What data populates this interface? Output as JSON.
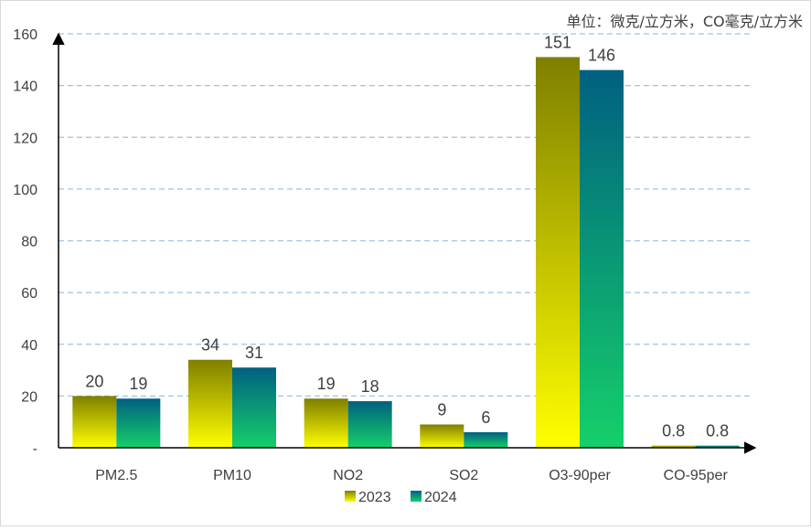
{
  "unit_note": "单位：微克/立方米，CO毫克/立方米",
  "colors": {
    "series_2023_top": "#7f7f00",
    "series_2023_bottom": "#ffff00",
    "series_2024_top": "#006080",
    "series_2024_bottom": "#15d06a",
    "grid": "#9dc3e6",
    "axis": "#000000",
    "label_text": "#404040"
  },
  "chart_data": {
    "type": "bar",
    "title": "",
    "xlabel": "",
    "ylabel": "",
    "categories": [
      "PM2.5",
      "PM10",
      "NO2",
      "SO2",
      "O3-90per",
      "CO-95per"
    ],
    "series": [
      {
        "name": "2023",
        "values": [
          20,
          34,
          19,
          9,
          151,
          0.8
        ],
        "labels": [
          "20",
          "34",
          "19",
          "9",
          "151",
          "0.8"
        ]
      },
      {
        "name": "2024",
        "values": [
          19,
          31,
          18,
          6,
          146,
          0.8
        ],
        "labels": [
          "19",
          "31",
          "18",
          "6",
          "146",
          "0.8"
        ]
      }
    ],
    "ylim": [
      0,
      160
    ],
    "yticks": [
      0,
      20,
      40,
      60,
      80,
      100,
      120,
      140,
      160
    ],
    "ytick_labels": [
      "-",
      "20",
      "40",
      "60",
      "80",
      "100",
      "120",
      "140",
      "160"
    ],
    "grid": true,
    "grid_style": "dashed",
    "legend_position": "bottom"
  }
}
